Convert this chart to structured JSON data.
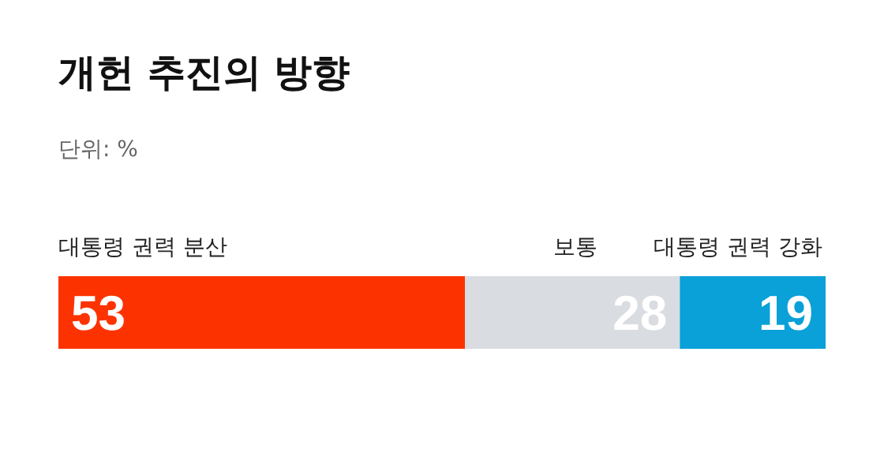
{
  "chart_data": {
    "type": "bar",
    "title": "개헌 추진의 방향",
    "subtitle": "단위: %",
    "orientation": "horizontal",
    "stacked": true,
    "categories": [
      null
    ],
    "xlim": [
      0,
      100
    ],
    "tick_labels": false,
    "data_labels": true,
    "legend": false,
    "grid": false,
    "series": [
      {
        "name": "대통령 권력 분산",
        "color": "#fc3300",
        "values": [
          53
        ]
      },
      {
        "name": "보통",
        "color": "#d9dde1",
        "values": [
          28
        ]
      },
      {
        "name": "대통령 권력 강화",
        "color": "#0aa0d8",
        "values": [
          19
        ]
      }
    ]
  }
}
